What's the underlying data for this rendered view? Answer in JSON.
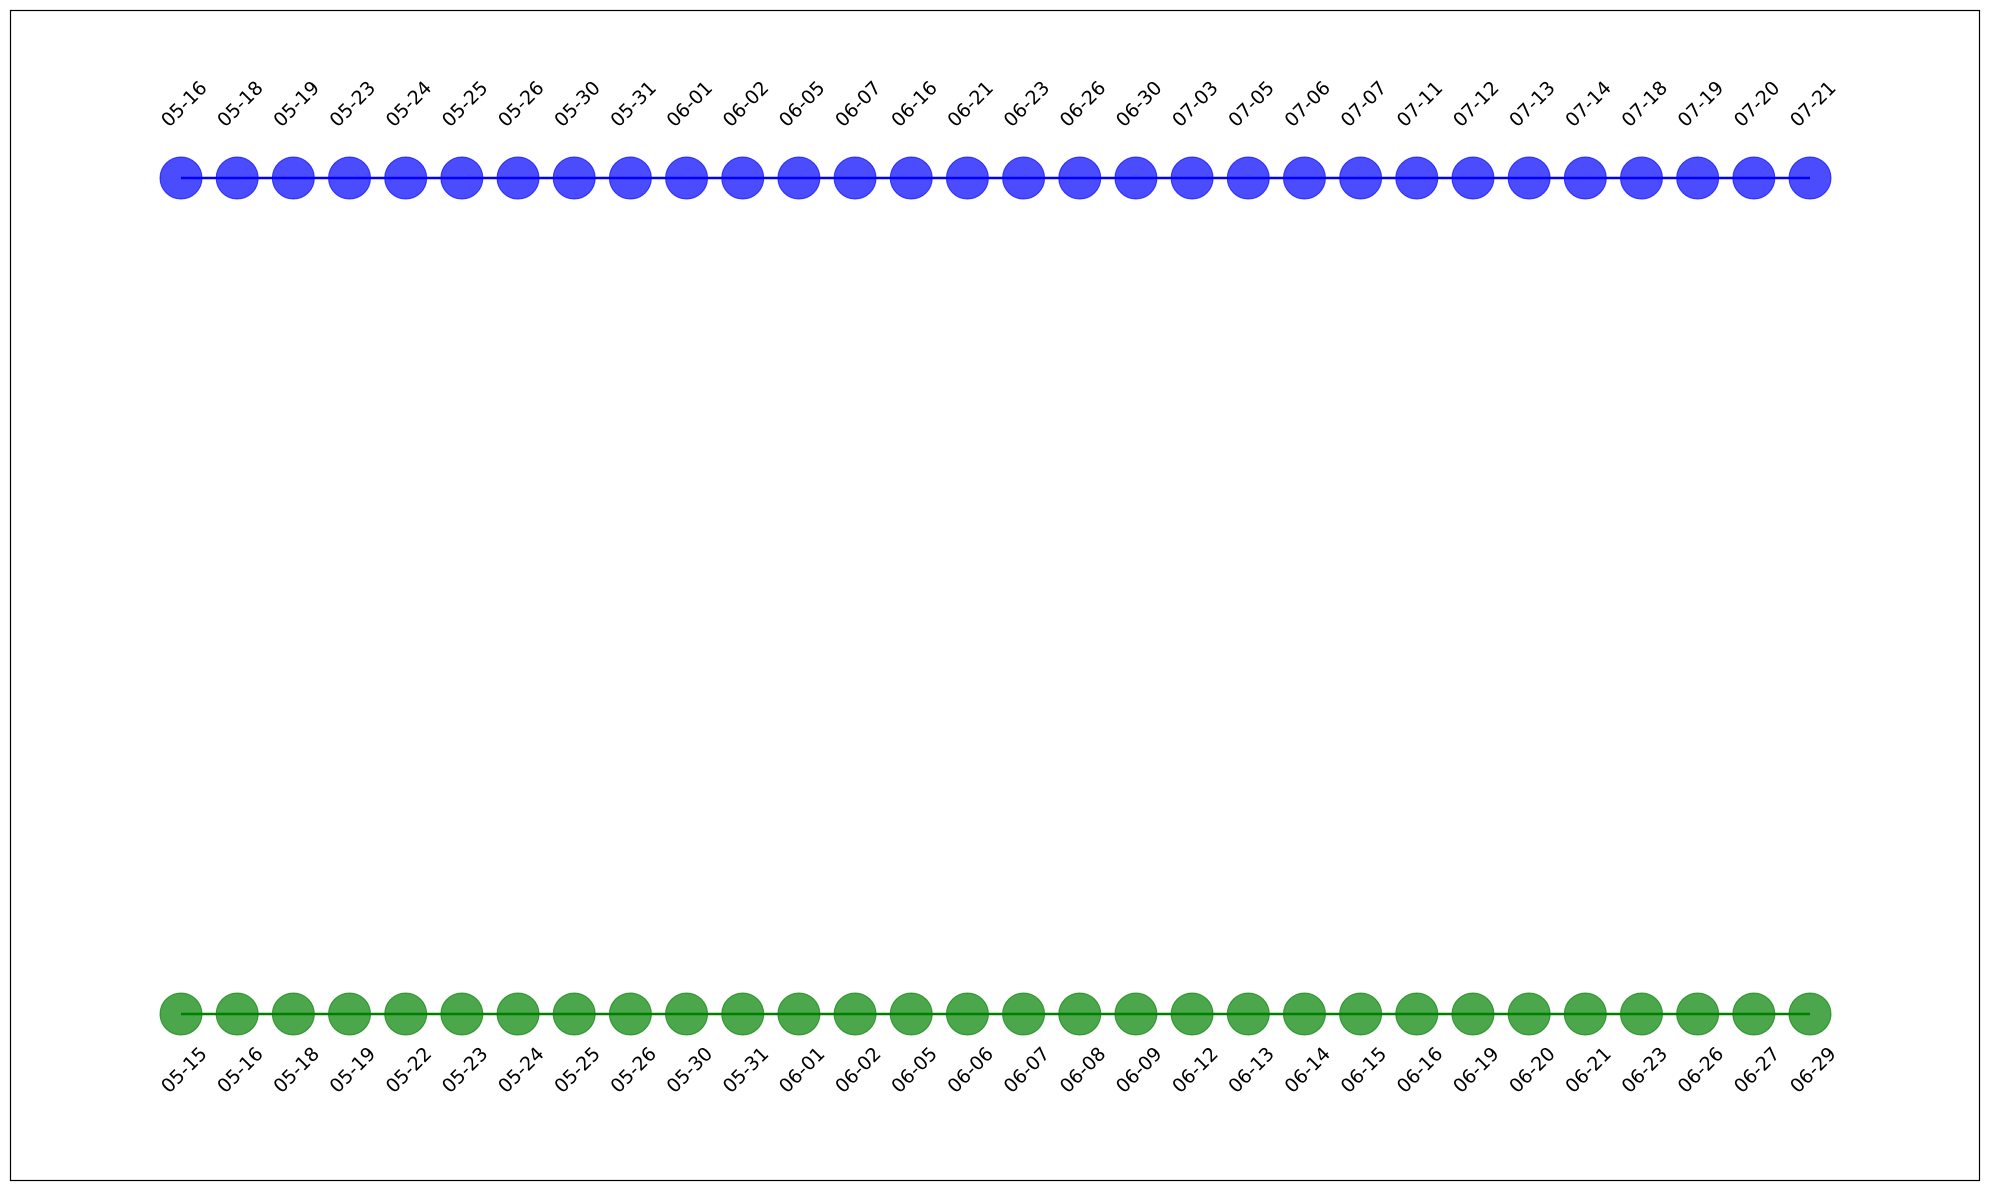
{
  "chart_data": {
    "type": "scatter",
    "title": "",
    "xlabel": "",
    "ylabel": "",
    "grid": false,
    "legend": "none",
    "series": [
      {
        "color": "#0000ff",
        "label_position": "above",
        "connected_by_line": true,
        "dates": [
          "05-16",
          "05-18",
          "05-19",
          "05-23",
          "05-24",
          "05-25",
          "05-26",
          "05-30",
          "05-31",
          "06-01",
          "06-02",
          "06-05",
          "06-07",
          "06-16",
          "06-21",
          "06-23",
          "06-26",
          "06-30",
          "07-03",
          "07-05",
          "07-06",
          "07-07",
          "07-11",
          "07-12",
          "07-13",
          "07-14",
          "07-18",
          "07-19",
          "07-20",
          "07-21"
        ]
      },
      {
        "color": "#008000",
        "label_position": "below",
        "connected_by_line": true,
        "dates": [
          "05-15",
          "05-16",
          "05-18",
          "05-19",
          "05-22",
          "05-23",
          "05-24",
          "05-25",
          "05-26",
          "05-30",
          "05-31",
          "06-01",
          "06-02",
          "06-05",
          "06-06",
          "06-07",
          "06-08",
          "06-09",
          "06-12",
          "06-13",
          "06-14",
          "06-15",
          "06-16",
          "06-19",
          "06-20",
          "06-21",
          "06-23",
          "06-26",
          "06-27",
          "06-29"
        ]
      }
    ]
  }
}
